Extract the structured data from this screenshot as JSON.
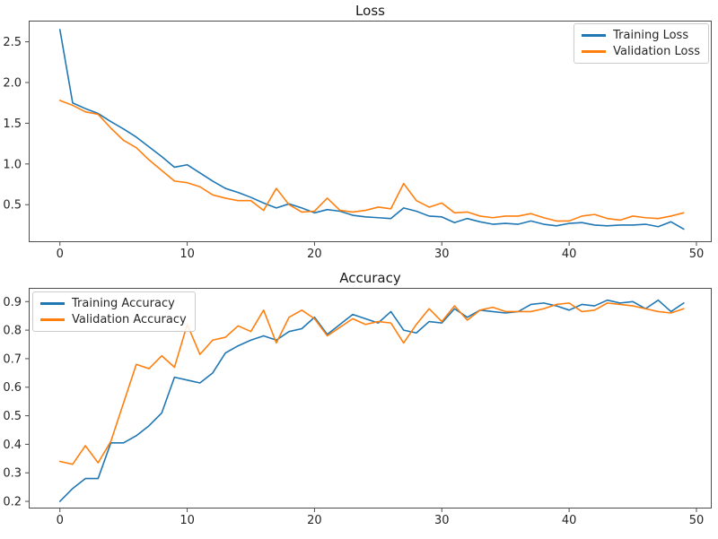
{
  "colors": {
    "background": "#ffffff",
    "text": "#262626",
    "spines": "#4d4d4d",
    "training_line": "#1f77b4",
    "validation_line": "#ff7f0e"
  },
  "chart_data": [
    {
      "type": "line",
      "title": "Loss",
      "grid": false,
      "legend_position": "upper right",
      "xlim": [
        -2.45,
        51.2
      ],
      "ylim": [
        0.04,
        2.76
      ],
      "xticks": [
        0,
        10,
        20,
        30,
        40,
        50
      ],
      "xtick_labels": [
        "0",
        "10",
        "20",
        "30",
        "40",
        "50"
      ],
      "yticks": [
        0.5,
        1.0,
        1.5,
        2.0,
        2.5
      ],
      "ytick_labels": [
        "0.5",
        "1.0",
        "1.5",
        "2.0",
        "2.5"
      ],
      "x": [
        0,
        1,
        2,
        3,
        4,
        5,
        6,
        7,
        8,
        9,
        10,
        11,
        12,
        13,
        14,
        15,
        16,
        17,
        18,
        19,
        20,
        21,
        22,
        23,
        24,
        25,
        26,
        27,
        28,
        29,
        30,
        31,
        32,
        33,
        34,
        35,
        36,
        37,
        38,
        39,
        40,
        41,
        42,
        43,
        44,
        45,
        46,
        47,
        48,
        49
      ],
      "series": [
        {
          "name": "Training Loss",
          "color": "#1f77b4",
          "values": [
            2.65,
            1.75,
            1.68,
            1.62,
            1.52,
            1.43,
            1.33,
            1.21,
            1.09,
            0.96,
            0.99,
            0.89,
            0.79,
            0.7,
            0.65,
            0.59,
            0.52,
            0.46,
            0.51,
            0.46,
            0.4,
            0.44,
            0.42,
            0.37,
            0.35,
            0.34,
            0.33,
            0.46,
            0.42,
            0.36,
            0.35,
            0.28,
            0.33,
            0.29,
            0.26,
            0.27,
            0.26,
            0.3,
            0.26,
            0.24,
            0.27,
            0.28,
            0.25,
            0.24,
            0.25,
            0.25,
            0.26,
            0.23,
            0.29,
            0.2
          ]
        },
        {
          "name": "Validation Loss",
          "color": "#ff7f0e",
          "values": [
            1.78,
            1.72,
            1.64,
            1.61,
            1.44,
            1.29,
            1.2,
            1.05,
            0.92,
            0.79,
            0.77,
            0.72,
            0.62,
            0.58,
            0.55,
            0.55,
            0.43,
            0.7,
            0.5,
            0.41,
            0.42,
            0.58,
            0.43,
            0.41,
            0.43,
            0.47,
            0.45,
            0.76,
            0.55,
            0.47,
            0.52,
            0.4,
            0.41,
            0.36,
            0.34,
            0.36,
            0.36,
            0.39,
            0.34,
            0.3,
            0.3,
            0.36,
            0.38,
            0.33,
            0.31,
            0.36,
            0.34,
            0.33,
            0.36,
            0.4
          ]
        }
      ]
    },
    {
      "type": "line",
      "title": "Accuracy",
      "grid": false,
      "legend_position": "upper left",
      "xlim": [
        -2.45,
        51.2
      ],
      "ylim": [
        0.175,
        0.948
      ],
      "xticks": [
        0,
        10,
        20,
        30,
        40,
        50
      ],
      "xtick_labels": [
        "0",
        "10",
        "20",
        "30",
        "40",
        "50"
      ],
      "yticks": [
        0.2,
        0.3,
        0.4,
        0.5,
        0.6,
        0.7,
        0.8,
        0.9
      ],
      "ytick_labels": [
        "0.2",
        "0.3",
        "0.4",
        "0.5",
        "0.6",
        "0.7",
        "0.8",
        "0.9"
      ],
      "x": [
        0,
        1,
        2,
        3,
        4,
        5,
        6,
        7,
        8,
        9,
        10,
        11,
        12,
        13,
        14,
        15,
        16,
        17,
        18,
        19,
        20,
        21,
        22,
        23,
        24,
        25,
        26,
        27,
        28,
        29,
        30,
        31,
        32,
        33,
        34,
        35,
        36,
        37,
        38,
        39,
        40,
        41,
        42,
        43,
        44,
        45,
        46,
        47,
        48,
        49
      ],
      "series": [
        {
          "name": "Training Accuracy",
          "color": "#1f77b4",
          "values": [
            0.2,
            0.245,
            0.28,
            0.28,
            0.405,
            0.405,
            0.43,
            0.465,
            0.51,
            0.635,
            0.625,
            0.615,
            0.65,
            0.72,
            0.745,
            0.765,
            0.78,
            0.765,
            0.795,
            0.805,
            0.845,
            0.785,
            0.82,
            0.855,
            0.84,
            0.825,
            0.865,
            0.8,
            0.79,
            0.83,
            0.825,
            0.875,
            0.845,
            0.87,
            0.865,
            0.86,
            0.865,
            0.89,
            0.895,
            0.885,
            0.87,
            0.89,
            0.885,
            0.905,
            0.895,
            0.9,
            0.875,
            0.905,
            0.865,
            0.895
          ]
        },
        {
          "name": "Validation Accuracy",
          "color": "#ff7f0e",
          "values": [
            0.34,
            0.33,
            0.395,
            0.335,
            0.41,
            0.545,
            0.68,
            0.665,
            0.71,
            0.67,
            0.82,
            0.715,
            0.765,
            0.775,
            0.815,
            0.795,
            0.87,
            0.755,
            0.845,
            0.87,
            0.84,
            0.78,
            0.81,
            0.84,
            0.82,
            0.83,
            0.825,
            0.755,
            0.82,
            0.875,
            0.83,
            0.885,
            0.835,
            0.87,
            0.88,
            0.865,
            0.865,
            0.865,
            0.875,
            0.89,
            0.895,
            0.865,
            0.87,
            0.895,
            0.89,
            0.885,
            0.875,
            0.865,
            0.86,
            0.875
          ]
        }
      ]
    }
  ]
}
